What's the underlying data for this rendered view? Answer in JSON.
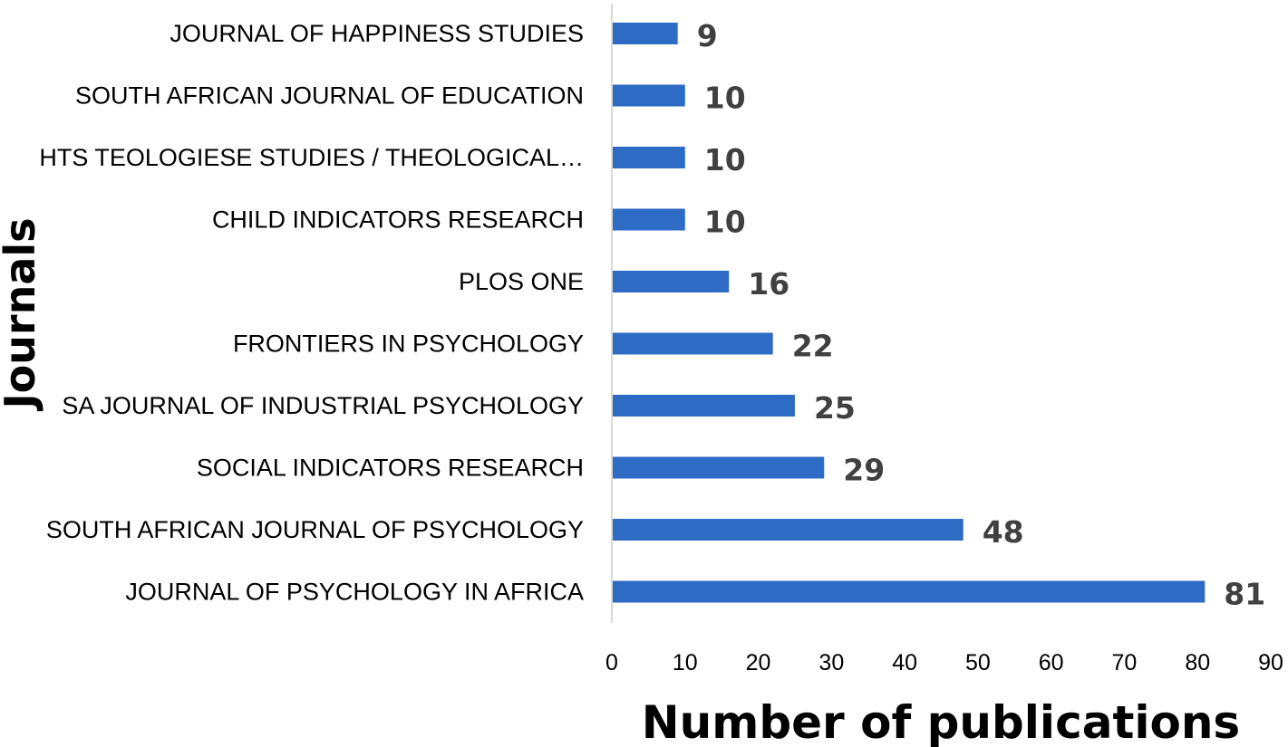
{
  "chart_data": {
    "type": "bar",
    "orientation": "horizontal",
    "categories": [
      "JOURNAL OF HAPPINESS STUDIES",
      "SOUTH AFRICAN JOURNAL OF EDUCATION",
      "HTS TEOLOGIESE STUDIES / THEOLOGICAL…",
      "CHILD INDICATORS RESEARCH",
      "PLOS ONE",
      "FRONTIERS IN PSYCHOLOGY",
      "SA JOURNAL OF INDUSTRIAL PSYCHOLOGY",
      "SOCIAL INDICATORS RESEARCH",
      "SOUTH AFRICAN JOURNAL OF PSYCHOLOGY",
      "JOURNAL OF PSYCHOLOGY IN AFRICA"
    ],
    "values": [
      9,
      10,
      10,
      10,
      16,
      22,
      25,
      29,
      48,
      81
    ],
    "xlabel": "Number of publications",
    "ylabel": "Journals",
    "xlim": [
      0,
      90
    ],
    "xticks": [
      0,
      10,
      20,
      30,
      40,
      50,
      60,
      70,
      80,
      90
    ],
    "bar_color": "#2e6bc4",
    "axis_color": "#d9d9d9",
    "data_labels": true,
    "grid": false,
    "legend": "none"
  }
}
